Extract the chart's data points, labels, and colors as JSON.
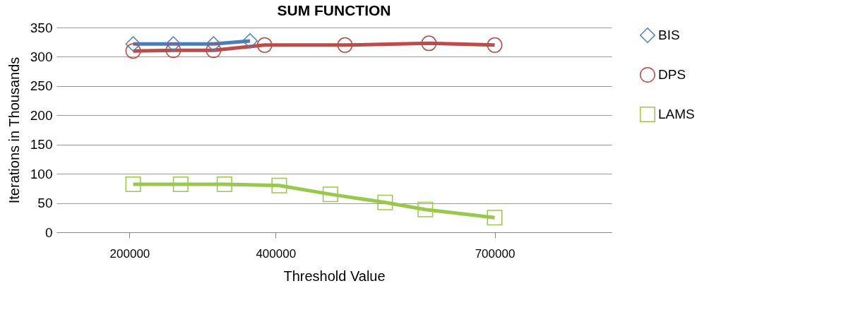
{
  "chart_data": {
    "type": "line",
    "title": "SUM FUNCTION",
    "xlabel": "Threshold Value",
    "ylabel": "Iterations in Thousands",
    "xlim": [
      100000,
      860000
    ],
    "xticks": [
      200000,
      400000,
      700000
    ],
    "ylim": [
      0,
      350
    ],
    "yticks": [
      0,
      50,
      100,
      150,
      200,
      250,
      300,
      350
    ],
    "grid": "y",
    "legend": "right",
    "line_style": "solid",
    "series": [
      {
        "name": "BIS",
        "color": "#4a7ebb",
        "marker": "diamond",
        "x": [
          205000,
          260000,
          315000,
          365000
        ],
        "values": [
          322,
          322,
          322,
          327
        ]
      },
      {
        "name": "DPS",
        "color": "#be4b48",
        "marker": "circle",
        "x": [
          205000,
          260000,
          315000,
          385000,
          495000,
          610000,
          700000
        ],
        "values": [
          310,
          311,
          311,
          320,
          320,
          323,
          320
        ]
      },
      {
        "name": "LAMS",
        "color": "#98c84c",
        "marker": "square",
        "x": [
          205000,
          270000,
          330000,
          405000,
          475000,
          550000,
          605000,
          700000
        ],
        "values": [
          82,
          82,
          82,
          80,
          65,
          51,
          39,
          25
        ]
      }
    ]
  }
}
